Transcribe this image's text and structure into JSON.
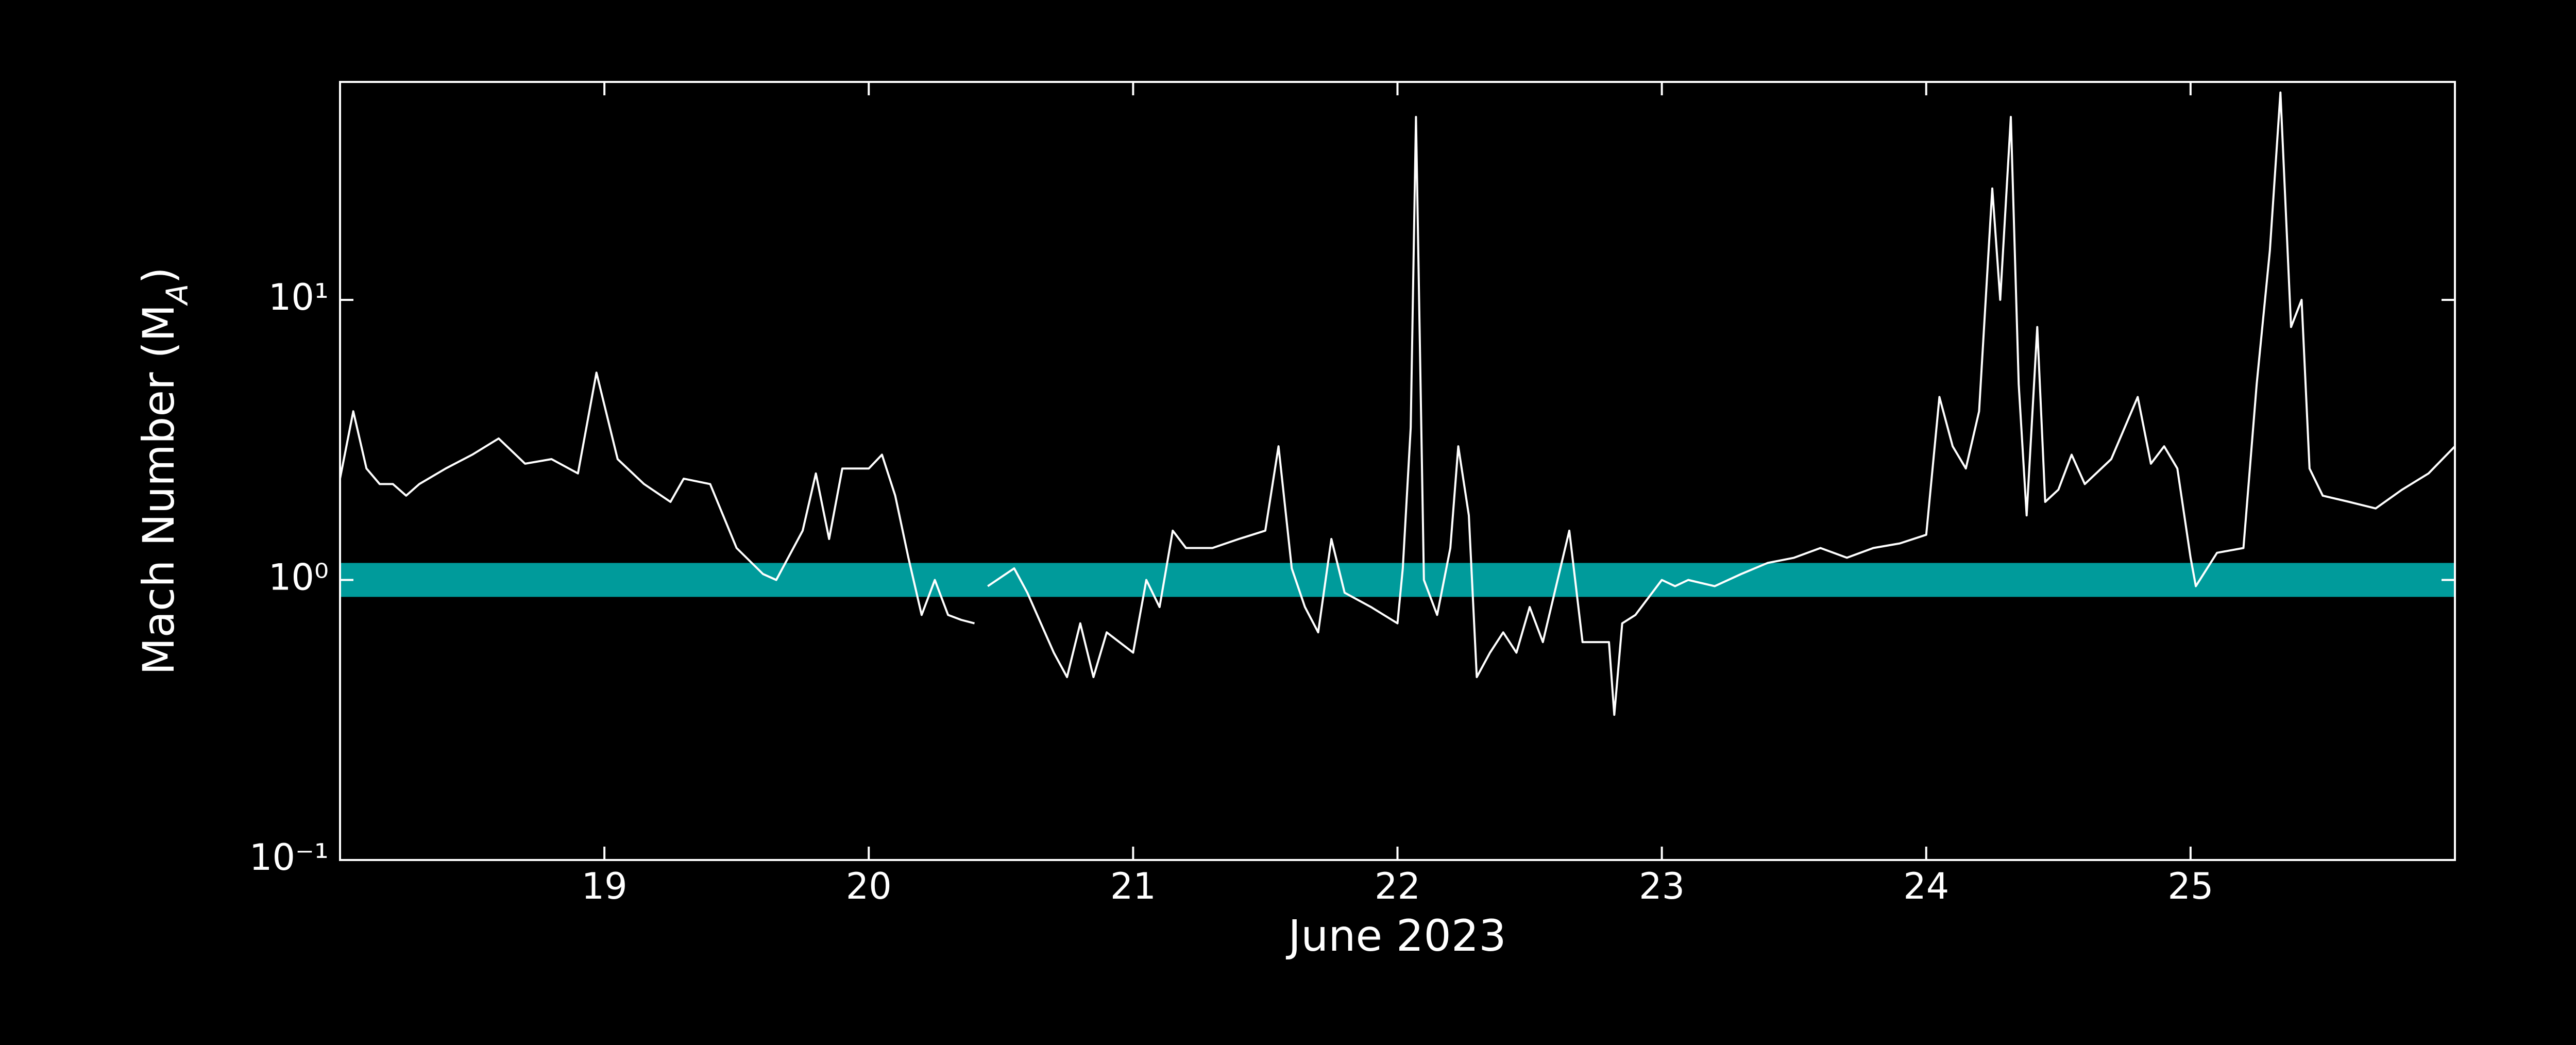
{
  "chart_data": {
    "type": "line",
    "xlabel": "June 2023",
    "ylabel": "Mach Number (M",
    "ylabel_subscript": "A",
    "ylabel_end": ")",
    "x": [
      18.0,
      18.05,
      18.1,
      18.15,
      18.2,
      18.25,
      18.3,
      18.4,
      18.5,
      18.6,
      18.7,
      18.8,
      18.9,
      18.97,
      19.05,
      19.15,
      19.25,
      19.3,
      19.4,
      19.5,
      19.6,
      19.65,
      19.75,
      19.8,
      19.85,
      19.9,
      20.0,
      20.05,
      20.1,
      20.15,
      20.2,
      20.25,
      20.3,
      20.35,
      20.4,
      20.43,
      20.45,
      20.55,
      20.6,
      20.7,
      20.75,
      20.8,
      20.85,
      20.9,
      21.0,
      21.05,
      21.1,
      21.15,
      21.2,
      21.3,
      21.4,
      21.5,
      21.55,
      21.6,
      21.65,
      21.7,
      21.75,
      21.8,
      21.9,
      22.0,
      22.02,
      22.05,
      22.07,
      22.1,
      22.15,
      22.2,
      22.23,
      22.27,
      22.3,
      22.35,
      22.4,
      22.45,
      22.5,
      22.55,
      22.6,
      22.65,
      22.7,
      22.8,
      22.82,
      22.85,
      22.9,
      23.0,
      23.05,
      23.1,
      23.2,
      23.3,
      23.4,
      23.5,
      23.6,
      23.7,
      23.8,
      23.9,
      24.0,
      24.05,
      24.1,
      24.15,
      24.2,
      24.25,
      24.28,
      24.32,
      24.35,
      24.38,
      24.42,
      24.45,
      24.5,
      24.55,
      24.6,
      24.7,
      24.8,
      24.85,
      24.9,
      24.95,
      25.0,
      25.02,
      25.1,
      25.2,
      25.25,
      25.3,
      25.34,
      25.38,
      25.42,
      25.45,
      25.5,
      25.6,
      25.7,
      25.8,
      25.9,
      26.0
    ],
    "values": [
      2.3,
      4.0,
      2.5,
      2.2,
      2.2,
      2.0,
      2.2,
      2.5,
      2.8,
      3.2,
      2.6,
      2.7,
      2.4,
      5.5,
      2.7,
      2.2,
      1.9,
      2.3,
      2.2,
      1.3,
      1.05,
      1.0,
      1.5,
      2.4,
      1.4,
      2.5,
      2.5,
      2.8,
      2.0,
      1.2,
      0.75,
      1.0,
      0.75,
      0.72,
      0.7,
      null,
      0.95,
      1.1,
      0.9,
      0.55,
      0.45,
      0.7,
      0.45,
      0.65,
      0.55,
      1.0,
      0.8,
      1.5,
      1.3,
      1.3,
      1.4,
      1.5,
      3.0,
      1.1,
      0.8,
      0.65,
      1.4,
      0.9,
      0.8,
      0.7,
      1.1,
      3.5,
      45,
      1.0,
      0.75,
      1.3,
      3.0,
      1.7,
      0.45,
      0.55,
      0.65,
      0.55,
      0.8,
      0.6,
      0.95,
      1.5,
      0.6,
      0.6,
      0.33,
      0.7,
      0.75,
      1.0,
      0.95,
      1.0,
      0.95,
      1.05,
      1.15,
      1.2,
      1.3,
      1.2,
      1.3,
      1.35,
      1.45,
      4.5,
      3.0,
      2.5,
      4.0,
      25,
      10,
      45,
      5,
      1.7,
      8,
      1.9,
      2.1,
      2.8,
      2.2,
      2.7,
      4.5,
      2.6,
      3.0,
      2.5,
      1.2,
      0.95,
      1.25,
      1.3,
      5,
      15,
      55,
      8,
      10,
      2.5,
      2.0,
      1.9,
      1.8,
      2.1,
      2.4,
      3.0
    ],
    "color": "#ffffff",
    "band": [
      0.87,
      1.15
    ],
    "band_color": "#009b9b",
    "xlim": [
      18.0,
      26.0
    ],
    "xticks": [
      19,
      20,
      21,
      22,
      23,
      24,
      25
    ],
    "ylim": [
      0.1,
      60
    ],
    "yscale": "log",
    "yticks": [
      {
        "value": 0.1,
        "label": "10⁻¹"
      },
      {
        "value": 1,
        "label": "10⁰"
      },
      {
        "value": 10,
        "label": "10¹"
      }
    ]
  }
}
